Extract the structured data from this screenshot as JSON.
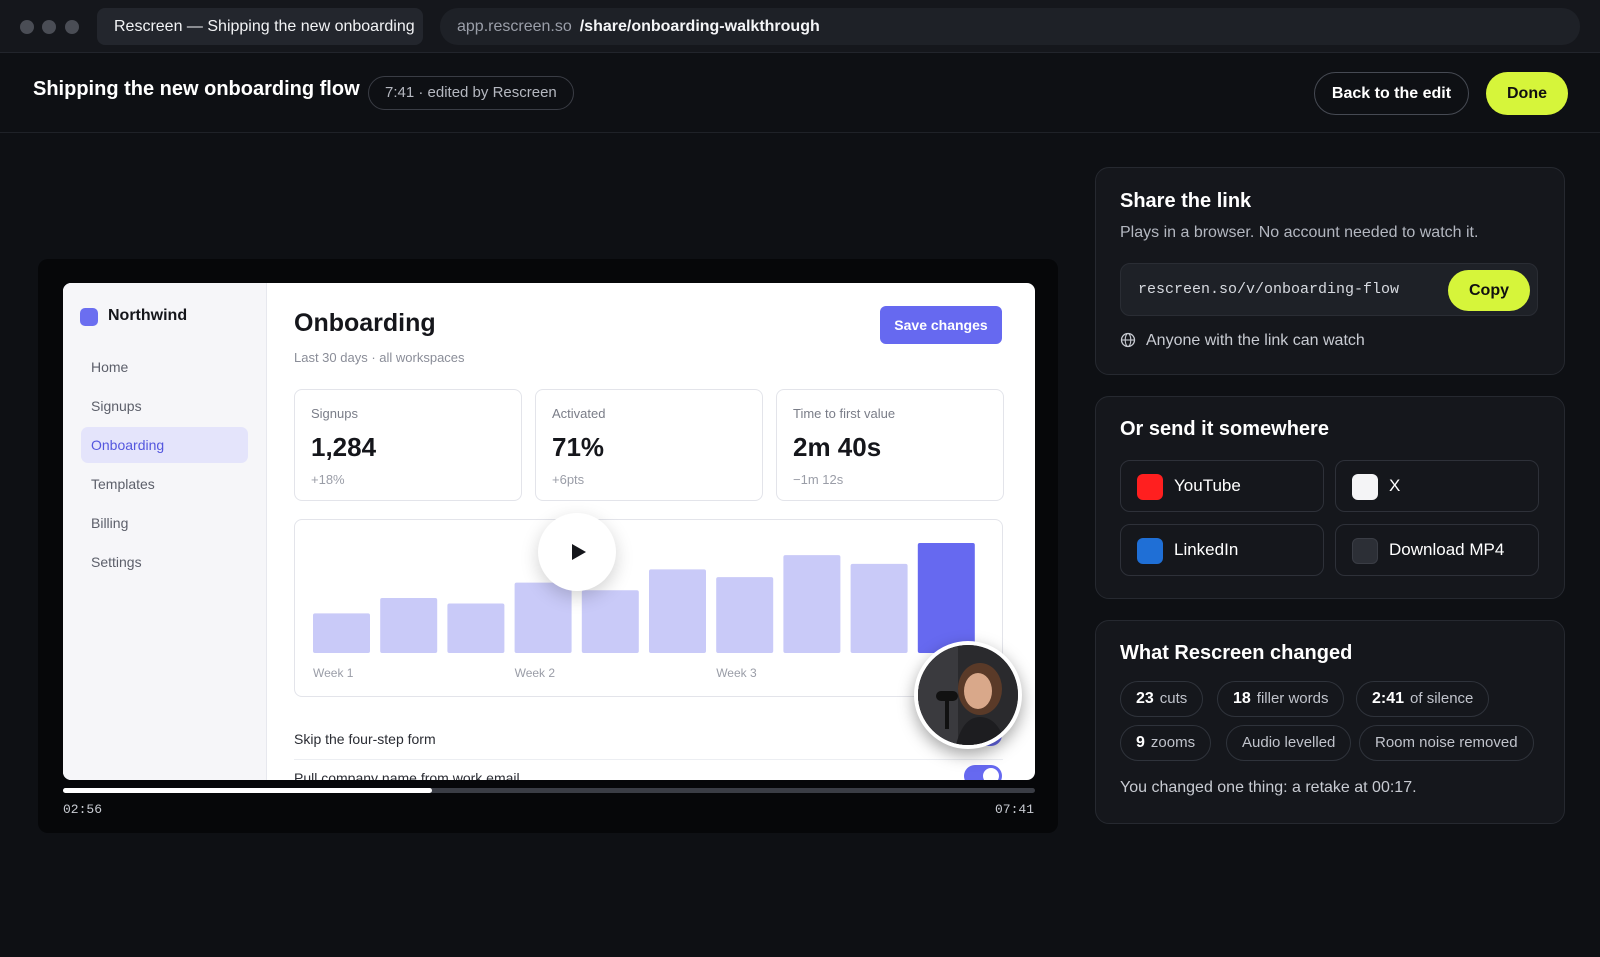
{
  "browser": {
    "tab_title": "Rescreen — Shipping the new onboarding",
    "url_host": "app.rescreen.so",
    "url_path": "/share/onboarding-walkthrough"
  },
  "header": {
    "title": "Shipping the new onboarding flow",
    "meta": "7:41 · edited by Rescreen",
    "back_label": "Back to the edit",
    "done_label": "Done"
  },
  "video": {
    "app": {
      "brand": "Northwind",
      "nav": [
        "Home",
        "Signups",
        "Onboarding",
        "Templates",
        "Billing",
        "Settings"
      ],
      "active_nav": "Onboarding",
      "title": "Onboarding",
      "subtitle": "Last 30 days · all workspaces",
      "save_label": "Save changes",
      "stats": [
        {
          "label": "Signups",
          "value": "1,284",
          "delta": "+18%"
        },
        {
          "label": "Activated",
          "value": "71%",
          "delta": "+6pts"
        },
        {
          "label": "Time to first value",
          "value": "2m 40s",
          "delta": "−1m 12s"
        }
      ],
      "rows": [
        "Skip the four-step form",
        "Pull company name from work email"
      ]
    },
    "current_time": "02:56",
    "duration": "07:41",
    "progress": 0.38
  },
  "chart_data": {
    "type": "bar",
    "x_tick_labels": [
      "Week 1",
      "Week 2",
      "Week 3"
    ],
    "values": [
      36,
      50,
      45,
      64,
      57,
      76,
      69,
      89,
      81,
      100
    ],
    "highlight_index": 9,
    "colors": {
      "bar": "#c9caf8",
      "highlight": "#6669f0"
    },
    "ylim": [
      0,
      100
    ]
  },
  "share": {
    "title": "Share the link",
    "desc": "Plays in a browser. No account needed to watch it.",
    "link": "rescreen.so/v/onboarding-flow",
    "copy_label": "Copy",
    "visibility": "Anyone with the link can watch"
  },
  "send": {
    "title": "Or send it somewhere",
    "destinations": [
      {
        "label": "YouTube",
        "color": "#ff1f1f"
      },
      {
        "label": "X",
        "color": "#f4f4f6"
      },
      {
        "label": "LinkedIn",
        "color": "#1f6fd6"
      },
      {
        "label": "Download MP4",
        "color": "#2c2f36"
      }
    ]
  },
  "changes": {
    "title": "What Rescreen changed",
    "chips": [
      {
        "num": "23",
        "label": "cuts"
      },
      {
        "num": "18",
        "label": "filler words"
      },
      {
        "num": "2:41",
        "label": "of silence"
      },
      {
        "num": "9",
        "label": "zooms"
      },
      {
        "num": "",
        "label": "Audio levelled"
      },
      {
        "num": "",
        "label": "Room noise removed"
      }
    ],
    "note": "You changed one thing: a retake at 00:17."
  },
  "colors": {
    "accent": "#d6f53a",
    "brand": "#6669f0"
  }
}
